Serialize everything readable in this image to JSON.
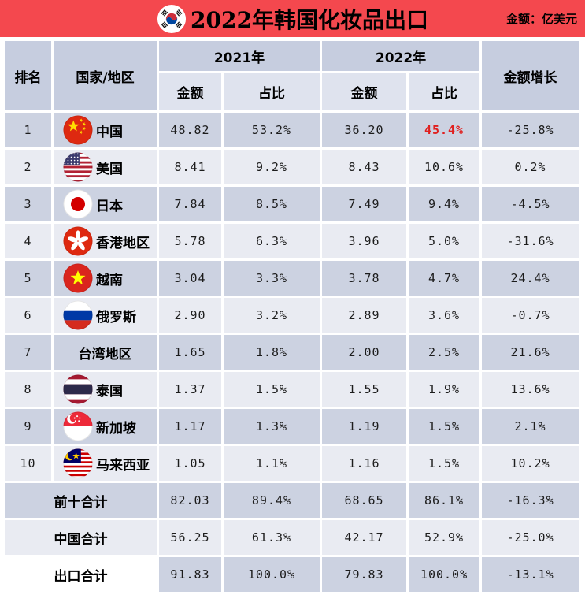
{
  "colors": {
    "header_bar_red": "#f4484e",
    "row_dark": "#ccd2e1",
    "row_light": "#e9ebf2",
    "header_cell": "#c6cddf",
    "subheader_cell": "#dfe3ee",
    "highlight_red": "#e0201f",
    "text": "#000000"
  },
  "chart_data": {
    "type": "table",
    "title": "2022年韩国化妆品出口",
    "title_icon": "korea-flag",
    "unit_label": "金额：亿美元",
    "header": {
      "rank": "排名",
      "country": "国家/地区",
      "y2021": "2021年",
      "y2022": "2022年",
      "amount": "金额",
      "share": "占比",
      "growth": "金额增长"
    },
    "rows": [
      {
        "rank": "1",
        "country": "中国",
        "flag": "china",
        "y2021_amount": "48.82",
        "y2021_share": "53.2%",
        "y2022_amount": "36.20",
        "y2022_share": "45.4%",
        "y2022_share_color": "red",
        "growth": "-25.8%"
      },
      {
        "rank": "2",
        "country": "美国",
        "flag": "usa",
        "y2021_amount": "8.41",
        "y2021_share": "9.2%",
        "y2022_amount": "8.43",
        "y2022_share": "10.6%",
        "growth": "0.2%"
      },
      {
        "rank": "3",
        "country": "日本",
        "flag": "japan",
        "y2021_amount": "7.84",
        "y2021_share": "8.5%",
        "y2022_amount": "7.49",
        "y2022_share": "9.4%",
        "growth": "-4.5%"
      },
      {
        "rank": "4",
        "country": "香港地区",
        "flag": "hongkong",
        "y2021_amount": "5.78",
        "y2021_share": "6.3%",
        "y2022_amount": "3.96",
        "y2022_share": "5.0%",
        "growth": "-31.6%"
      },
      {
        "rank": "5",
        "country": "越南",
        "flag": "vietnam",
        "y2021_amount": "3.04",
        "y2021_share": "3.3%",
        "y2022_amount": "3.78",
        "y2022_share": "4.7%",
        "growth": "24.4%"
      },
      {
        "rank": "6",
        "country": "俄罗斯",
        "flag": "russia",
        "y2021_amount": "2.90",
        "y2021_share": "3.2%",
        "y2022_amount": "2.89",
        "y2022_share": "3.6%",
        "growth": "-0.7%"
      },
      {
        "rank": "7",
        "country": "台湾地区",
        "flag": null,
        "y2021_amount": "1.65",
        "y2021_share": "1.8%",
        "y2022_amount": "2.00",
        "y2022_share": "2.5%",
        "growth": "21.6%"
      },
      {
        "rank": "8",
        "country": "泰国",
        "flag": "thailand",
        "y2021_amount": "1.37",
        "y2021_share": "1.5%",
        "y2022_amount": "1.55",
        "y2022_share": "1.9%",
        "growth": "13.6%"
      },
      {
        "rank": "9",
        "country": "新加坡",
        "flag": "singapore",
        "y2021_amount": "1.17",
        "y2021_share": "1.3%",
        "y2022_amount": "1.19",
        "y2022_share": "1.5%",
        "growth": "2.1%"
      },
      {
        "rank": "10",
        "country": "马来西亚",
        "flag": "malaysia",
        "y2021_amount": "1.05",
        "y2021_share": "1.1%",
        "y2022_amount": "1.16",
        "y2022_share": "1.5%",
        "growth": "10.2%"
      }
    ],
    "summary_rows": [
      {
        "label": "前十合计",
        "y2021_amount": "82.03",
        "y2021_share": "89.4%",
        "y2022_amount": "68.65",
        "y2022_share": "86.1%",
        "growth": "-16.3%",
        "shade": "dark"
      },
      {
        "label": "中国合计",
        "y2021_amount": "56.25",
        "y2021_share": "61.3%",
        "y2022_amount": "42.17",
        "y2022_share": "52.9%",
        "growth": "-25.0%",
        "shade": "light"
      },
      {
        "label": "出口合计",
        "y2021_amount": "91.83",
        "y2021_share": "100.0%",
        "y2022_amount": "79.83",
        "y2022_share": "100.0%",
        "growth": "-13.1%",
        "shade": "dark",
        "label_bg": "white"
      }
    ]
  }
}
